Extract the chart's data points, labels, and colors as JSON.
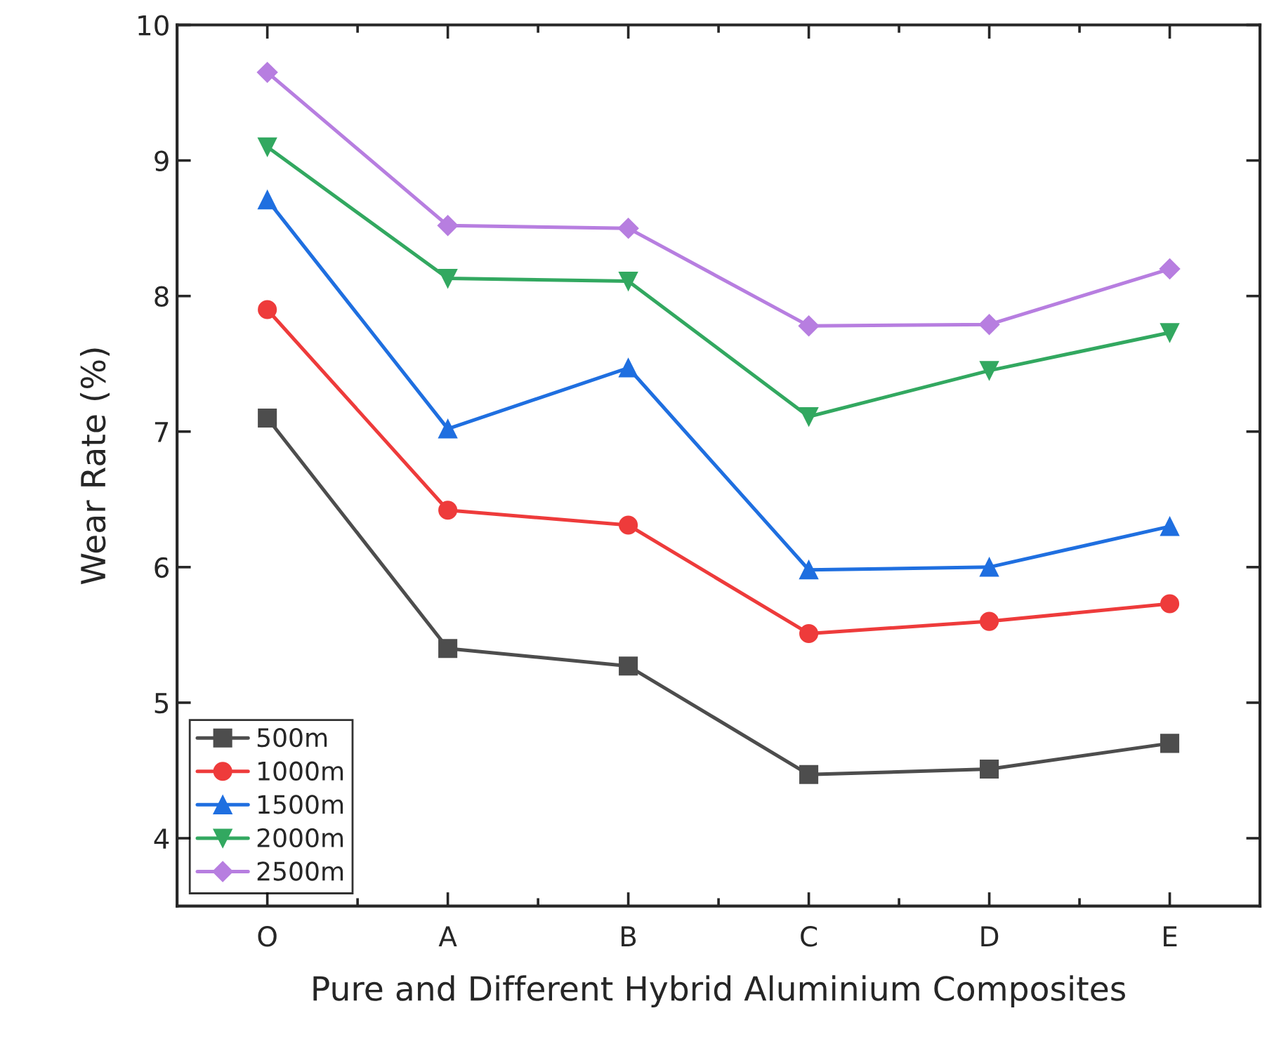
{
  "chart_data": {
    "type": "line",
    "xlabel": "Pure and Different Hybrid Aluminium Composites",
    "ylabel": "Wear Rate (%)",
    "categories": [
      "O",
      "A",
      "B",
      "C",
      "D",
      "E"
    ],
    "series": [
      {
        "name": "500m",
        "color": "#4d4d4d",
        "marker": "square",
        "values": [
          7.1,
          5.4,
          5.27,
          4.47,
          4.51,
          4.7
        ]
      },
      {
        "name": "1000m",
        "color": "#ee3b3b",
        "marker": "circle",
        "values": [
          7.9,
          6.42,
          6.31,
          5.51,
          5.6,
          5.73
        ]
      },
      {
        "name": "1500m",
        "color": "#1f6fe0",
        "marker": "triangle",
        "values": [
          8.71,
          7.02,
          7.47,
          5.98,
          6.0,
          6.3
        ]
      },
      {
        "name": "2000m",
        "color": "#32a860",
        "marker": "triangle_down",
        "values": [
          9.1,
          8.13,
          8.11,
          7.11,
          7.45,
          7.73
        ]
      },
      {
        "name": "2500m",
        "color": "#b77ee0",
        "marker": "diamond",
        "values": [
          9.65,
          8.52,
          8.5,
          7.78,
          7.79,
          8.2
        ]
      }
    ],
    "ylim": [
      3.5,
      10
    ],
    "yticks": [
      4,
      5,
      6,
      7,
      8,
      9,
      10
    ],
    "grid": false,
    "legend": "bottom left",
    "line_style": "solid"
  }
}
